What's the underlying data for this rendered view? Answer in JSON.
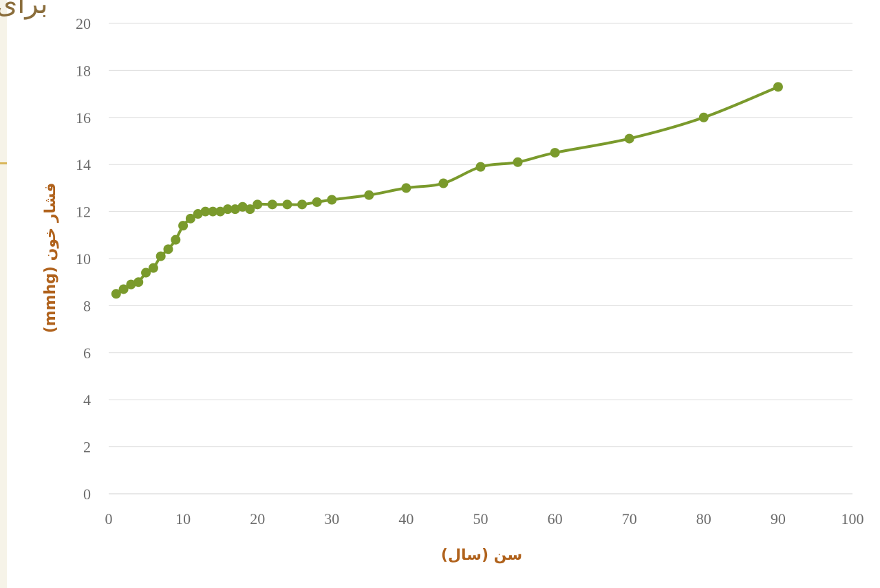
{
  "slide": {
    "title_fragment": "برای",
    "colors": {
      "background": "#f6f3e8",
      "accent": "#d9b65a",
      "title": "#8a6d3b"
    }
  },
  "chart_data": {
    "type": "line",
    "xlabel": "سن (سال)",
    "ylabel": "فشار خون (mmhg)",
    "xlim": [
      0,
      100
    ],
    "ylim": [
      0,
      20
    ],
    "xticks": [
      0,
      10,
      20,
      30,
      40,
      50,
      60,
      70,
      80,
      90,
      100
    ],
    "yticks": [
      0,
      2,
      4,
      6,
      8,
      10,
      12,
      14,
      16,
      18,
      20
    ],
    "grid": "horizontal",
    "legend": "none",
    "smooth": true,
    "series": [
      {
        "color": "#7a9a2c",
        "x": [
          1,
          2,
          3,
          4,
          5,
          6,
          7,
          8,
          9,
          10,
          11,
          12,
          13,
          14,
          15,
          16,
          17,
          18,
          19,
          20,
          22,
          24,
          26,
          28,
          30,
          35,
          40,
          45,
          50,
          55,
          60,
          70,
          80,
          90
        ],
        "y": [
          8.5,
          8.7,
          8.9,
          9.0,
          9.4,
          9.6,
          10.1,
          10.4,
          10.8,
          11.4,
          11.7,
          11.9,
          12.0,
          12.0,
          12.0,
          12.1,
          12.1,
          12.2,
          12.1,
          12.3,
          12.3,
          12.3,
          12.3,
          12.4,
          12.5,
          12.7,
          13.0,
          13.2,
          13.9,
          14.1,
          14.5,
          15.1,
          16.0,
          17.3
        ]
      }
    ]
  }
}
